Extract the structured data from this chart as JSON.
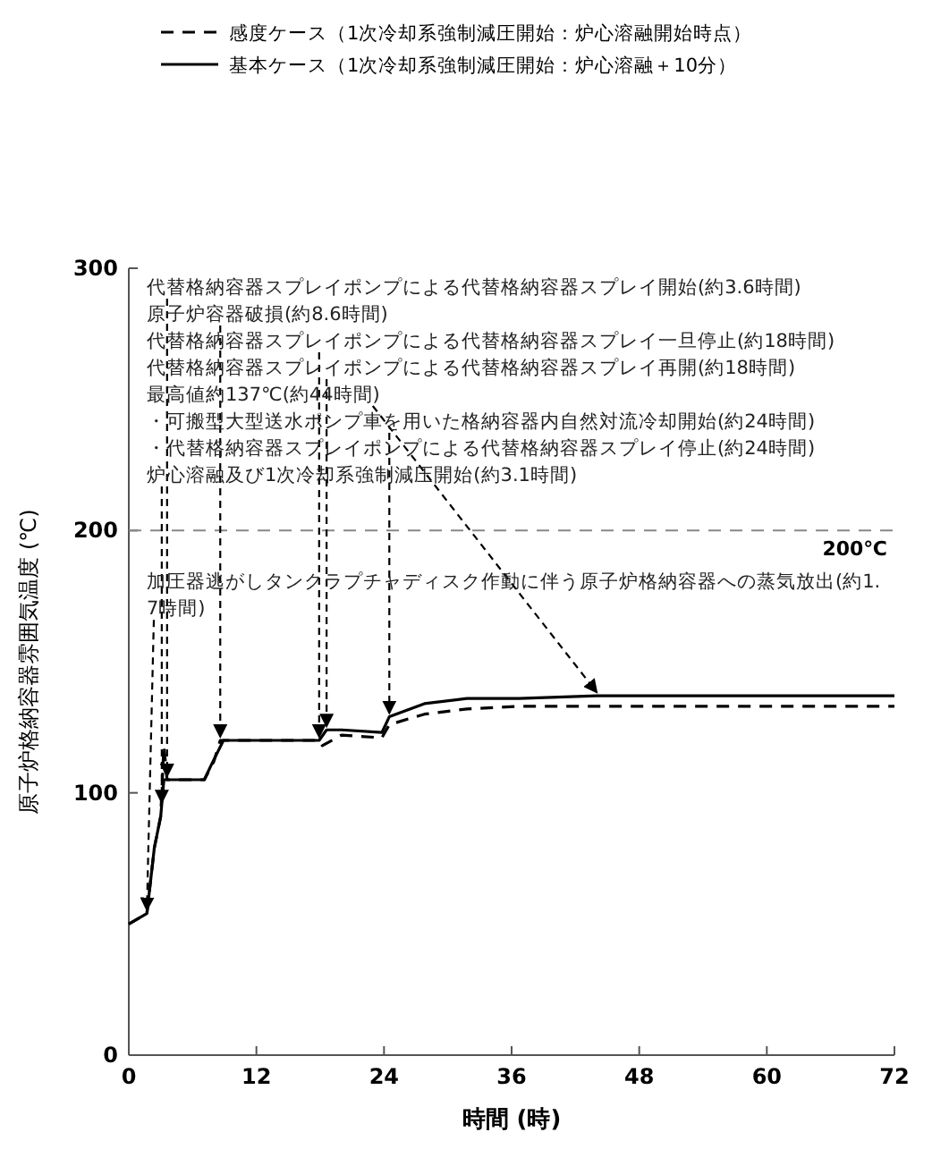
{
  "chart_data": {
    "type": "line",
    "xlabel": "時間 (時)",
    "ylabel": "原子炉格納容器雰囲気温度 (℃)",
    "xlim": [
      0,
      72
    ],
    "xticks": [
      0,
      12,
      24,
      36,
      48,
      60,
      72
    ],
    "ylim": [
      0,
      300
    ],
    "yticks": [
      0,
      100,
      200,
      300
    ],
    "legend": "top",
    "series": [
      {
        "name": "感度ケース（1次冷却系強制減圧開始：炉心溶融開始時点）",
        "color": "#000000",
        "line_style": "dashed",
        "x": [
          0,
          1.7,
          2.4,
          3.0,
          3.3,
          3.6,
          7.1,
          8.0,
          8.6,
          17.9,
          18.2,
          20,
          23.8,
          24.5,
          27.8,
          31.8,
          36.7,
          72
        ],
        "values": [
          50,
          54,
          79,
          91,
          118,
          105,
          105,
          112,
          120,
          120,
          118,
          122,
          121,
          126,
          130,
          132,
          133,
          133
        ]
      },
      {
        "name": "基本ケース（1次冷却系強制減圧開始：炉心溶融＋10分）",
        "color": "#000000",
        "line_style": "solid",
        "x": [
          0,
          1.7,
          2.4,
          3.0,
          3.3,
          7.1,
          7.8,
          8.9,
          17.9,
          18.6,
          20,
          23.8,
          24.5,
          27.8,
          31.8,
          36.7,
          44,
          72
        ],
        "values": [
          50,
          54,
          79,
          91,
          105,
          105,
          111,
          120,
          120,
          124,
          124,
          123,
          129,
          134,
          136,
          136,
          137,
          137
        ]
      }
    ],
    "ref_lines": [
      {
        "axis": "y",
        "value": 200,
        "label": "200℃",
        "line_style": "dashed",
        "color": "#888888"
      }
    ],
    "annotations": [
      {
        "text": "代替格納容器スプレイポンプによる代替格納容器スプレイ開始(約3.6時間)",
        "x": 3.6,
        "y": 105
      },
      {
        "text": "原子炉容器破損(約8.6時間)",
        "x": 8.6,
        "y": 120
      },
      {
        "text": "代替格納容器スプレイポンプによる代替格納容器スプレイ一旦停止(約18時間)",
        "x": 17.9,
        "y": 120
      },
      {
        "text": "代替格納容器スプレイポンプによる代替格納容器スプレイ再開(約18時間)",
        "x": 18.6,
        "y": 124
      },
      {
        "text": "最高値約137℃(約44時間)",
        "x": 44,
        "y": 137
      },
      {
        "text": "・可搬型大型送水ポンプ車を用いた格納容器内自然対流冷却開始(約24時間)",
        "x": 24.5,
        "y": 129
      },
      "・代替格納容器スプレイポンプによる代替格納容器スプレイ停止(約24時間)",
      {
        "text": "炉心溶融及び1次冷却系強制減圧開始(約3.1時間)",
        "x": 3.1,
        "y": 95
      },
      {
        "text": "加圧器逃がしタンクラプチャディスク作動に伴う原子炉格納容器への蒸気放出(約1.7時間)",
        "x": 1.7,
        "y": 54
      }
    ]
  }
}
